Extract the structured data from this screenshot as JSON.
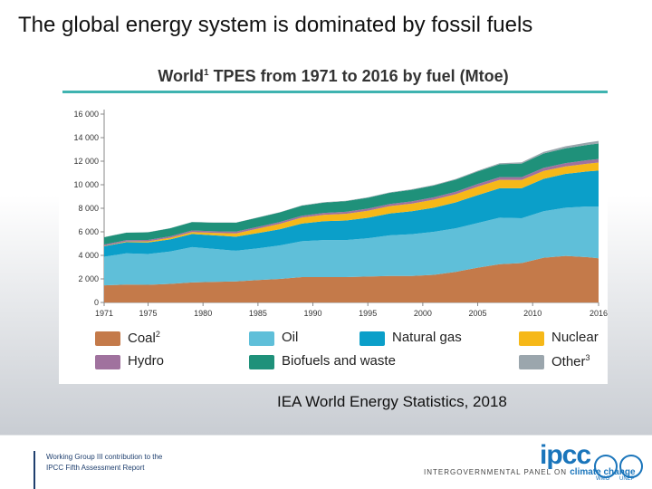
{
  "slide": {
    "title": "The global energy system is dominated by fossil fuels",
    "source": "IEA World Energy Statistics, 2018"
  },
  "chart_data": {
    "type": "area",
    "title": "World",
    "title_sup": "1",
    "title_rest": " TPES from 1971 to 2016 by fuel (Mtoe)",
    "x": [
      1971,
      1973,
      1975,
      1977,
      1979,
      1981,
      1983,
      1985,
      1987,
      1989,
      1991,
      1993,
      1995,
      1997,
      1999,
      2001,
      2003,
      2005,
      2007,
      2009,
      2011,
      2013,
      2015,
      2016
    ],
    "x_ticks": [
      1971,
      1975,
      1980,
      1985,
      1990,
      1995,
      2000,
      2005,
      2010,
      2016
    ],
    "y_ticks": [
      0,
      2000,
      4000,
      6000,
      8000,
      10000,
      12000,
      14000,
      16000
    ],
    "y_tick_labels": [
      "0",
      "2 000",
      "4 000",
      "6 000",
      "8 000",
      "10 000",
      "12 000",
      "14 000",
      "16 000"
    ],
    "ylim": [
      0,
      16000
    ],
    "xlim": [
      1971,
      2016
    ],
    "series": [
      {
        "name": "Coal",
        "sup": "2",
        "color": "#c47a4a",
        "values": [
          1450,
          1520,
          1500,
          1580,
          1700,
          1750,
          1790,
          1900,
          2000,
          2150,
          2150,
          2150,
          2200,
          2250,
          2250,
          2350,
          2600,
          2950,
          3250,
          3350,
          3800,
          3950,
          3850,
          3750
        ]
      },
      {
        "name": "Oil",
        "sup": "",
        "color": "#5fbfd9",
        "values": [
          2430,
          2650,
          2620,
          2750,
          3000,
          2800,
          2600,
          2700,
          2850,
          3050,
          3150,
          3150,
          3250,
          3450,
          3550,
          3650,
          3700,
          3800,
          3950,
          3800,
          3950,
          4100,
          4300,
          4400
        ]
      },
      {
        "name": "Natural gas",
        "sup": "",
        "color": "#0b9fc9",
        "values": [
          900,
          950,
          980,
          1030,
          1120,
          1150,
          1200,
          1290,
          1370,
          1500,
          1600,
          1660,
          1740,
          1860,
          1950,
          2050,
          2200,
          2370,
          2500,
          2550,
          2750,
          2870,
          2980,
          3050
        ]
      },
      {
        "name": "Nuclear",
        "sup": "",
        "color": "#f6b818",
        "values": [
          30,
          50,
          90,
          130,
          160,
          210,
          280,
          380,
          460,
          510,
          540,
          570,
          600,
          620,
          640,
          680,
          690,
          720,
          710,
          700,
          670,
          640,
          660,
          680
        ]
      },
      {
        "name": "Hydro",
        "sup": "",
        "color": "#a0729e",
        "values": [
          110,
          115,
          120,
          125,
          135,
          140,
          145,
          150,
          155,
          160,
          165,
          175,
          185,
          190,
          200,
          205,
          210,
          225,
          235,
          245,
          260,
          280,
          295,
          300
        ]
      },
      {
        "name": "Biofuels and waste",
        "sup": "",
        "color": "#1f917a",
        "values": [
          620,
          640,
          650,
          680,
          710,
          730,
          760,
          790,
          820,
          850,
          880,
          900,
          920,
          950,
          980,
          1000,
          1030,
          1060,
          1100,
          1150,
          1220,
          1260,
          1300,
          1320
        ]
      },
      {
        "name": "Other",
        "sup": "3",
        "color": "#9ba6ad",
        "values": [
          10,
          10,
          12,
          12,
          14,
          16,
          18,
          20,
          22,
          26,
          30,
          32,
          36,
          40,
          44,
          50,
          60,
          70,
          85,
          110,
          140,
          170,
          200,
          220
        ]
      }
    ],
    "legend_placement": "bottom"
  },
  "footer": {
    "wg_line1": "Working Group III contribution to the",
    "wg_line2": "IPCC Fifth Assessment Report",
    "ipcc": "ipcc",
    "tagline": "INTERGOVERNMENTAL PANEL ON ",
    "tagline_cc": "climate change",
    "wmo": "WMO",
    "unep": "UNEP"
  }
}
